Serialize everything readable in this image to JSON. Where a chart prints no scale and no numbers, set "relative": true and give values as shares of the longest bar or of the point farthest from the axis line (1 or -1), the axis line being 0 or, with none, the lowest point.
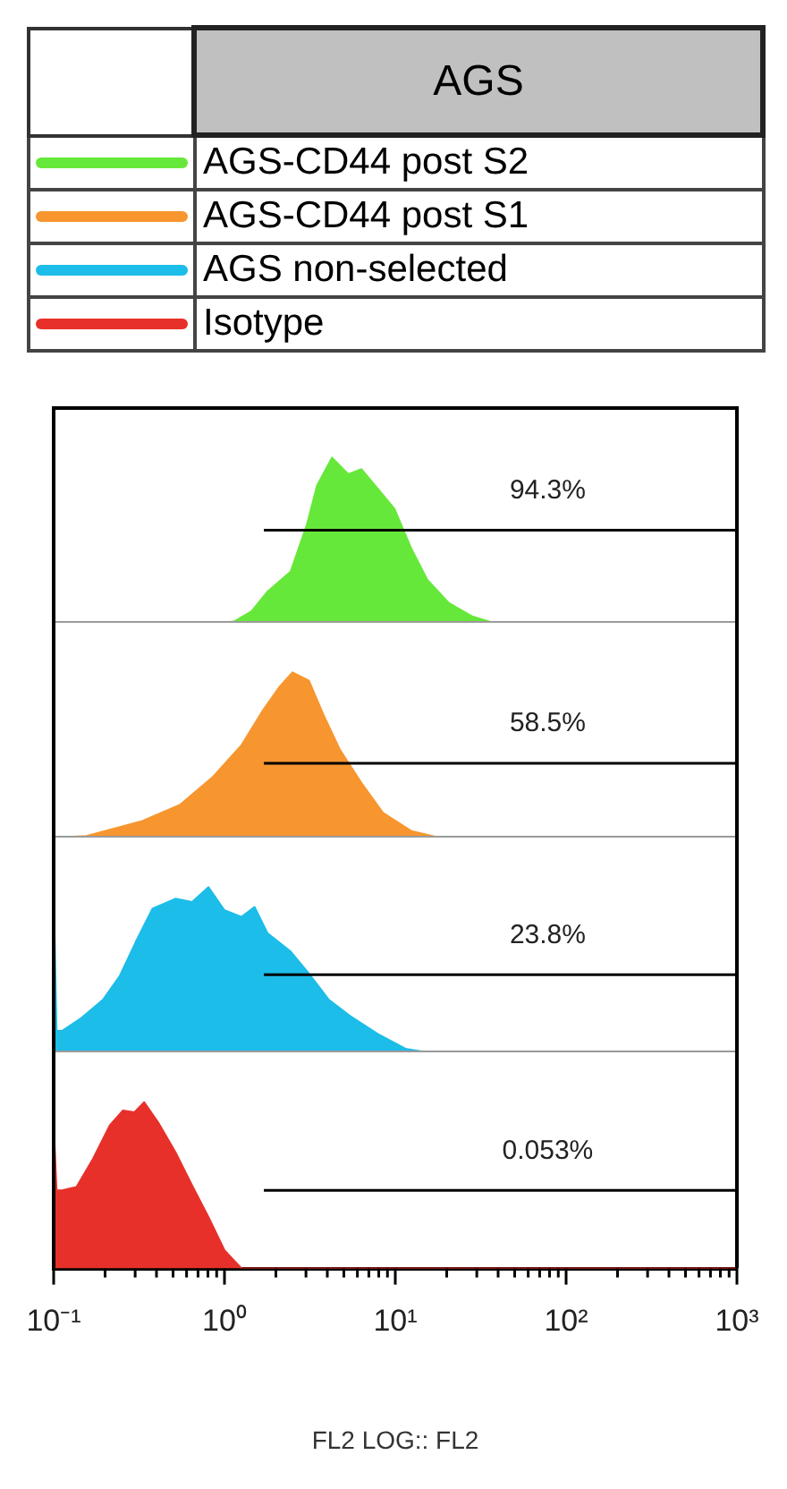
{
  "chart_data": [
    {
      "type": "area",
      "relative": true,
      "legend": "top",
      "legend_title": "AGS",
      "log": "x",
      "xlim": [
        0.1,
        1000
      ],
      "tick_labels": false,
      "series": [
        {
          "name": "AGS-CD44 post S2",
          "color": "#66e83a",
          "x": [
            0.1,
            1.0,
            1.15,
            1.44,
            1.79,
            2.44,
            3.05,
            3.48,
            4.26,
            5.31,
            6.34,
            7.92,
            9.89,
            12.4,
            15.4,
            20.6,
            28.1,
            37.4,
            1000
          ],
          "values": [
            0,
            0,
            0.01,
            0.07,
            0.19,
            0.31,
            0.6,
            0.83,
            1,
            0.9,
            0.93,
            0.81,
            0.69,
            0.45,
            0.26,
            0.12,
            0.04,
            0,
            0
          ]
        },
        {
          "type": "line",
          "color": "#000000",
          "x": [
            1.7,
            1000
          ],
          "values": [
            0.56,
            0.56
          ]
        }
      ],
      "annotations": [
        "94.3%"
      ]
    },
    {
      "type": "area",
      "relative": true,
      "legend": "top",
      "log": "x",
      "xlim": [
        0.1,
        1000
      ],
      "tick_labels": false,
      "series": [
        {
          "name": "AGS-CD44 post S1",
          "color": "#f7962f",
          "x": [
            0.1,
            0.156,
            0.331,
            0.552,
            0.861,
            1.26,
            1.68,
            2.09,
            2.5,
            3.12,
            3.81,
            4.75,
            6.34,
            8.47,
            12.4,
            18,
            1000
          ],
          "values": [
            0,
            0.01,
            0.1,
            0.2,
            0.37,
            0.56,
            0.77,
            0.91,
            1,
            0.95,
            0.74,
            0.53,
            0.33,
            0.15,
            0.04,
            0,
            0
          ]
        },
        {
          "type": "line",
          "color": "#000000",
          "x": [
            1.7,
            1000
          ],
          "values": [
            0.45,
            0.45
          ]
        }
      ],
      "annotations": [
        "58.5%"
      ]
    },
    {
      "type": "area",
      "relative": true,
      "legend": "top",
      "log": "x",
      "xlim": [
        0.1,
        1000
      ],
      "tick_labels": false,
      "series": [
        {
          "name": "AGS non-selected",
          "color": "#1cbde8",
          "x": [
            0.1,
            0.104,
            0.112,
            0.146,
            0.195,
            0.243,
            0.303,
            0.379,
            0.516,
            0.646,
            0.805,
            1.0,
            1.26,
            1.5,
            1.79,
            2.44,
            3.05,
            4.07,
            5.43,
            7.92,
            11.6,
            15.4,
            1000
          ],
          "values": [
            0.98,
            0.13,
            0.13,
            0.21,
            0.32,
            0.46,
            0.67,
            0.87,
            0.93,
            0.91,
            1,
            0.86,
            0.82,
            0.88,
            0.72,
            0.61,
            0.49,
            0.32,
            0.22,
            0.11,
            0.02,
            0,
            0
          ]
        },
        {
          "type": "line",
          "color": "#000000",
          "x": [
            1.7,
            1000
          ],
          "values": [
            0.47,
            0.47
          ]
        }
      ],
      "annotations": [
        "23.8%"
      ]
    },
    {
      "type": "area",
      "relative": true,
      "legend": "top",
      "log": "x",
      "xlim": [
        0.1,
        1000
      ],
      "tick_labels": "x",
      "xlabel": "FL2 LOG:: FL2",
      "xticks": [
        {
          "value": 0.1,
          "label": "10⁻¹"
        },
        {
          "value": 0.2,
          "label": null
        },
        {
          "value": 0.3,
          "label": null
        },
        {
          "value": 0.4,
          "label": null
        },
        {
          "value": 0.5,
          "label": null
        },
        {
          "value": 0.6,
          "label": null
        },
        {
          "value": 0.7,
          "label": null
        },
        {
          "value": 0.8,
          "label": null
        },
        {
          "value": 0.9,
          "label": null
        },
        {
          "value": 1,
          "label": "10⁰"
        },
        {
          "value": 2,
          "label": null
        },
        {
          "value": 3,
          "label": null
        },
        {
          "value": 4,
          "label": null
        },
        {
          "value": 5,
          "label": null
        },
        {
          "value": 6,
          "label": null
        },
        {
          "value": 7,
          "label": null
        },
        {
          "value": 8,
          "label": null
        },
        {
          "value": 9,
          "label": null
        },
        {
          "value": 10,
          "label": "10¹"
        },
        {
          "value": 20,
          "label": null
        },
        {
          "value": 30,
          "label": null
        },
        {
          "value": 40,
          "label": null
        },
        {
          "value": 50,
          "label": null
        },
        {
          "value": 60,
          "label": null
        },
        {
          "value": 70,
          "label": null
        },
        {
          "value": 80,
          "label": null
        },
        {
          "value": 90,
          "label": null
        },
        {
          "value": 100,
          "label": "10²"
        },
        {
          "value": 200,
          "label": null
        },
        {
          "value": 300,
          "label": null
        },
        {
          "value": 400,
          "label": null
        },
        {
          "value": 500,
          "label": null
        },
        {
          "value": 600,
          "label": null
        },
        {
          "value": 700,
          "label": null
        },
        {
          "value": 800,
          "label": null
        },
        {
          "value": 900,
          "label": null
        },
        {
          "value": 1000,
          "label": "10³"
        }
      ],
      "series": [
        {
          "name": "Isotype",
          "color": "#e8302a",
          "x": [
            0.1,
            0.104,
            0.112,
            0.136,
            0.17,
            0.213,
            0.254,
            0.297,
            0.339,
            0.414,
            0.516,
            0.646,
            0.805,
            1.0,
            1.26,
            1000
          ],
          "values": [
            0.87,
            0.47,
            0.47,
            0.49,
            0.66,
            0.86,
            0.95,
            0.94,
            1,
            0.87,
            0.7,
            0.5,
            0.31,
            0.11,
            0,
            0
          ]
        },
        {
          "type": "line",
          "color": "#000000",
          "x": [
            1.7,
            1000
          ],
          "values": [
            0.47,
            0.47
          ]
        }
      ],
      "annotations": [
        "0.053%"
      ]
    }
  ]
}
